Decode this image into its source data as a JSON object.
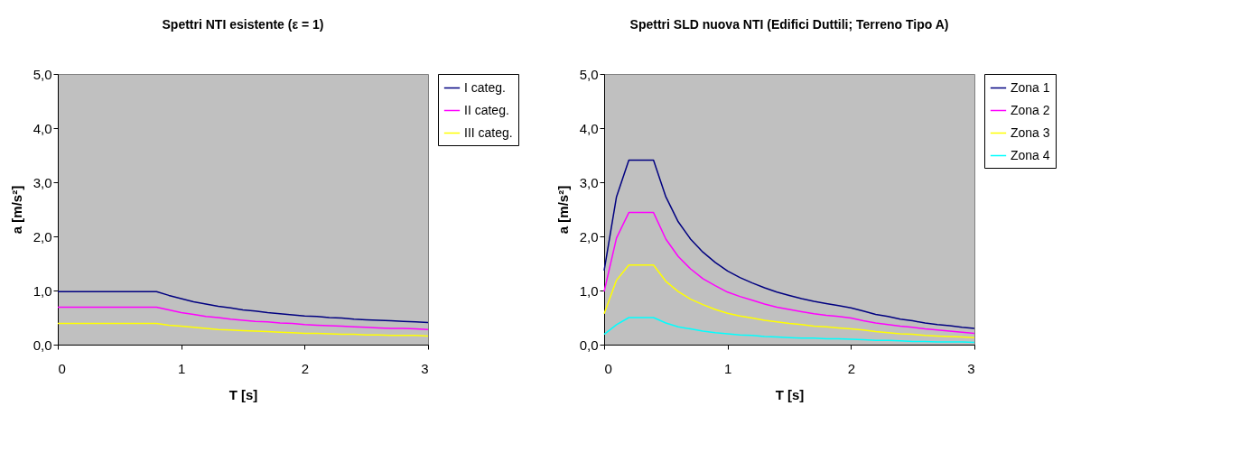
{
  "chart_data": [
    {
      "type": "line",
      "title": "Spettri NTI esistente (ε = 1)",
      "xlabel": "T [s]",
      "ylabel": "a [m/s²]",
      "xlim": [
        0,
        3
      ],
      "xticks": [
        0,
        1,
        2,
        3
      ],
      "ylim": [
        0,
        5
      ],
      "yticks": [
        {
          "value": 0,
          "label": "0,0"
        },
        {
          "value": 1,
          "label": "1,0"
        },
        {
          "value": 2,
          "label": "2,0"
        },
        {
          "value": 3,
          "label": "3,0"
        },
        {
          "value": 4,
          "label": "4,0"
        },
        {
          "value": 5,
          "label": "5,0"
        }
      ],
      "grid": false,
      "legend": "right",
      "marker": "none",
      "line_style": "solid",
      "x": [
        0,
        0.1,
        0.2,
        0.3,
        0.4,
        0.5,
        0.6,
        0.7,
        0.8,
        0.9,
        1.0,
        1.1,
        1.2,
        1.3,
        1.4,
        1.5,
        1.6,
        1.7,
        1.8,
        1.9,
        2.0,
        2.1,
        2.2,
        2.3,
        2.4,
        2.5,
        2.6,
        2.7,
        2.8,
        2.9,
        3.0
      ],
      "series": [
        {
          "name": "I categ.",
          "color": "#000080",
          "values": [
            0.98,
            0.98,
            0.98,
            0.98,
            0.98,
            0.98,
            0.98,
            0.98,
            0.98,
            0.91,
            0.85,
            0.79,
            0.75,
            0.71,
            0.68,
            0.64,
            0.62,
            0.59,
            0.57,
            0.55,
            0.53,
            0.52,
            0.5,
            0.49,
            0.47,
            0.46,
            0.45,
            0.44,
            0.43,
            0.42,
            0.41
          ]
        },
        {
          "name": "II categ.",
          "color": "#ff00ff",
          "values": [
            0.69,
            0.69,
            0.69,
            0.69,
            0.69,
            0.69,
            0.69,
            0.69,
            0.69,
            0.64,
            0.59,
            0.56,
            0.52,
            0.5,
            0.47,
            0.45,
            0.43,
            0.42,
            0.4,
            0.39,
            0.37,
            0.36,
            0.35,
            0.34,
            0.33,
            0.32,
            0.31,
            0.3,
            0.3,
            0.29,
            0.28
          ]
        },
        {
          "name": "III categ.",
          "color": "#ffff00",
          "values": [
            0.39,
            0.39,
            0.39,
            0.39,
            0.39,
            0.39,
            0.39,
            0.39,
            0.39,
            0.36,
            0.34,
            0.32,
            0.3,
            0.28,
            0.27,
            0.26,
            0.25,
            0.24,
            0.23,
            0.22,
            0.21,
            0.21,
            0.2,
            0.19,
            0.19,
            0.18,
            0.18,
            0.17,
            0.17,
            0.17,
            0.16
          ]
        }
      ]
    },
    {
      "type": "line",
      "title": "Spettri SLD nuova NTI (Edifici Duttili; Terreno Tipo A)",
      "xlabel": "T [s]",
      "ylabel": "a [m/s²]",
      "xlim": [
        0,
        3
      ],
      "xticks": [
        0,
        1,
        2,
        3
      ],
      "ylim": [
        0,
        5
      ],
      "yticks": [
        {
          "value": 0,
          "label": "0,0"
        },
        {
          "value": 1,
          "label": "1,0"
        },
        {
          "value": 2,
          "label": "2,0"
        },
        {
          "value": 3,
          "label": "3,0"
        },
        {
          "value": 4,
          "label": "4,0"
        },
        {
          "value": 5,
          "label": "5,0"
        }
      ],
      "grid": false,
      "legend": "right",
      "marker": "none",
      "line_style": "solid",
      "x": [
        0,
        0.1,
        0.2,
        0.3,
        0.4,
        0.5,
        0.6,
        0.7,
        0.8,
        0.9,
        1.0,
        1.1,
        1.2,
        1.3,
        1.4,
        1.5,
        1.6,
        1.7,
        1.8,
        1.9,
        2.0,
        2.1,
        2.2,
        2.3,
        2.4,
        2.5,
        2.6,
        2.7,
        2.8,
        2.9,
        3.0
      ],
      "series": [
        {
          "name": "Zona 1",
          "color": "#000080",
          "values": [
            1.37,
            2.73,
            3.41,
            3.41,
            3.41,
            2.73,
            2.27,
            1.95,
            1.71,
            1.52,
            1.36,
            1.24,
            1.14,
            1.05,
            0.97,
            0.91,
            0.85,
            0.8,
            0.76,
            0.72,
            0.68,
            0.62,
            0.56,
            0.52,
            0.47,
            0.44,
            0.4,
            0.37,
            0.35,
            0.32,
            0.3
          ]
        },
        {
          "name": "Zona 2",
          "color": "#ff00ff",
          "values": [
            0.98,
            1.97,
            2.44,
            2.44,
            2.44,
            1.95,
            1.63,
            1.4,
            1.22,
            1.09,
            0.97,
            0.89,
            0.82,
            0.75,
            0.69,
            0.65,
            0.61,
            0.57,
            0.54,
            0.52,
            0.49,
            0.44,
            0.4,
            0.37,
            0.34,
            0.32,
            0.29,
            0.27,
            0.25,
            0.23,
            0.21
          ]
        },
        {
          "name": "Zona 3",
          "color": "#ffff00",
          "values": [
            0.57,
            1.19,
            1.47,
            1.47,
            1.47,
            1.17,
            0.98,
            0.84,
            0.74,
            0.65,
            0.58,
            0.53,
            0.49,
            0.45,
            0.42,
            0.39,
            0.37,
            0.34,
            0.33,
            0.31,
            0.29,
            0.27,
            0.24,
            0.22,
            0.2,
            0.19,
            0.17,
            0.16,
            0.15,
            0.14,
            0.13
          ]
        },
        {
          "name": "Zona 4",
          "color": "#00ffff",
          "values": [
            0.19,
            0.37,
            0.5,
            0.5,
            0.5,
            0.4,
            0.33,
            0.29,
            0.25,
            0.22,
            0.2,
            0.18,
            0.17,
            0.15,
            0.14,
            0.13,
            0.12,
            0.12,
            0.11,
            0.11,
            0.1,
            0.09,
            0.08,
            0.08,
            0.07,
            0.06,
            0.06,
            0.05,
            0.05,
            0.05,
            0.04
          ]
        }
      ]
    }
  ]
}
